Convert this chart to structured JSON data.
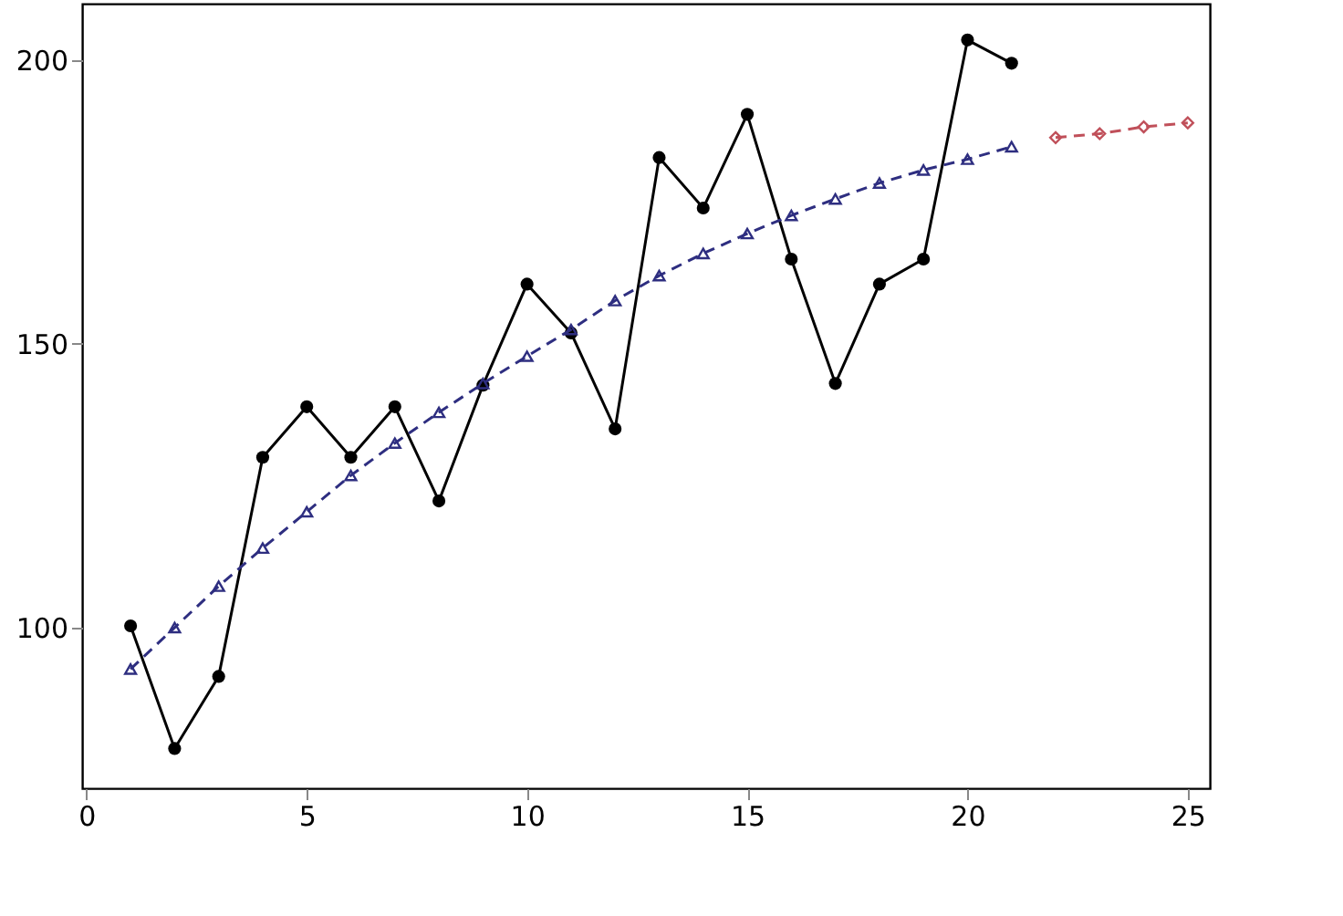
{
  "chart_data": {
    "type": "line",
    "xlim": [
      -0.1,
      25.5
    ],
    "ylim": [
      71.7,
      209.9
    ],
    "xticks": [
      0,
      5,
      10,
      15,
      20,
      25
    ],
    "yticks": [
      100,
      150,
      200
    ],
    "grid": false,
    "legend": false,
    "series": [
      {
        "color": "#000000",
        "marker": "circle",
        "line_style": "solid",
        "x": [
          1,
          2,
          3,
          4,
          5,
          6,
          7,
          8,
          9,
          10,
          11,
          12,
          13,
          14,
          15,
          16,
          17,
          18,
          19,
          20,
          21
        ],
        "values": [
          100.3,
          78.7,
          91.4,
          130,
          138.9,
          130,
          138.9,
          122.3,
          142.7,
          160.5,
          151.9,
          135,
          182.8,
          173.9,
          190.4,
          164.9,
          143,
          160.5,
          164.9,
          203.5,
          199.4
        ]
      },
      {
        "color": "#2e2e80",
        "marker": "triangle",
        "line_style": "dashed",
        "x": [
          1,
          2,
          3,
          4,
          5,
          6,
          7,
          8,
          9,
          10,
          11,
          12,
          13,
          14,
          15,
          16,
          17,
          18,
          19,
          20,
          21
        ],
        "values": [
          92.7,
          100,
          107.3,
          114,
          120.4,
          126.8,
          132.5,
          137.9,
          143,
          147.8,
          152.5,
          157.6,
          162,
          165.9,
          169.4,
          172.6,
          175.5,
          178.3,
          180.6,
          182.5,
          184.7
        ]
      },
      {
        "color": "#c0505a",
        "marker": "diamond",
        "line_style": "dashed",
        "x": [
          22,
          23,
          24,
          25
        ],
        "values": [
          186.3,
          187,
          188.2,
          188.9
        ]
      }
    ]
  }
}
